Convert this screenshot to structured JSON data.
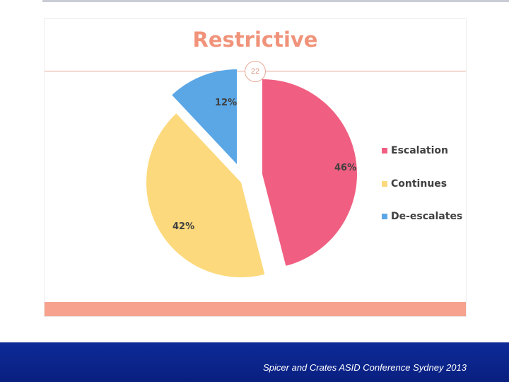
{
  "slide": {
    "title": "Restrictive",
    "page_number": "22",
    "footer": "Spicer and Crates ASID Conference Sydney 2013"
  },
  "chart_data": {
    "type": "pie",
    "title": "Restrictive",
    "slices": [
      {
        "label": "Escalation",
        "value": 46,
        "value_label": "46%",
        "color": "#f05f82"
      },
      {
        "label": "Continues",
        "value": 42,
        "value_label": "42%",
        "color": "#fcd97c"
      },
      {
        "label": "De-escalates",
        "value": 12,
        "value_label": "12%",
        "color": "#5ba7e6"
      }
    ],
    "exploded": true,
    "legend_position": "right"
  }
}
